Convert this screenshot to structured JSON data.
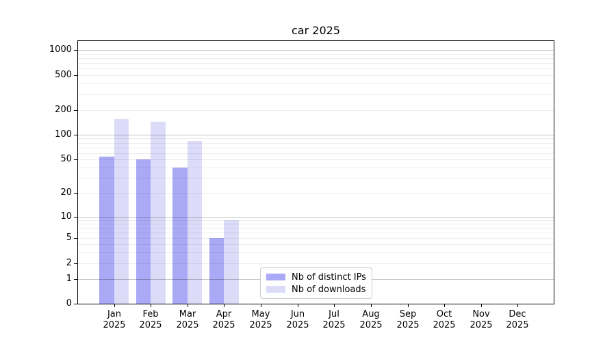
{
  "chart_data": {
    "type": "bar",
    "title": "car 2025",
    "categories": [
      "Jan",
      "Feb",
      "Mar",
      "Apr",
      "May",
      "Jun",
      "Jul",
      "Aug",
      "Sep",
      "Oct",
      "Nov",
      "Dec"
    ],
    "category_year": "2025",
    "series": [
      {
        "name": "Nb of distinct IPs",
        "color": "#a9a9f6",
        "values": [
          54,
          50,
          40,
          5,
          0,
          0,
          0,
          0,
          0,
          0,
          0,
          0
        ]
      },
      {
        "name": "Nb of downloads",
        "color": "#dcdcf9",
        "values": [
          155,
          145,
          84,
          9,
          0,
          0,
          0,
          0,
          0,
          0,
          0,
          0
        ]
      }
    ],
    "yticks": [
      0,
      1,
      2,
      5,
      10,
      20,
      50,
      100,
      200,
      500,
      1000
    ],
    "yscale": "symlog",
    "ylim": [
      0,
      1000
    ],
    "grid": true,
    "grid_major_values": [
      1,
      10,
      100,
      1000
    ],
    "legend_position": "lower center",
    "background_color": "#ffffff",
    "axis_color": "#000000"
  }
}
